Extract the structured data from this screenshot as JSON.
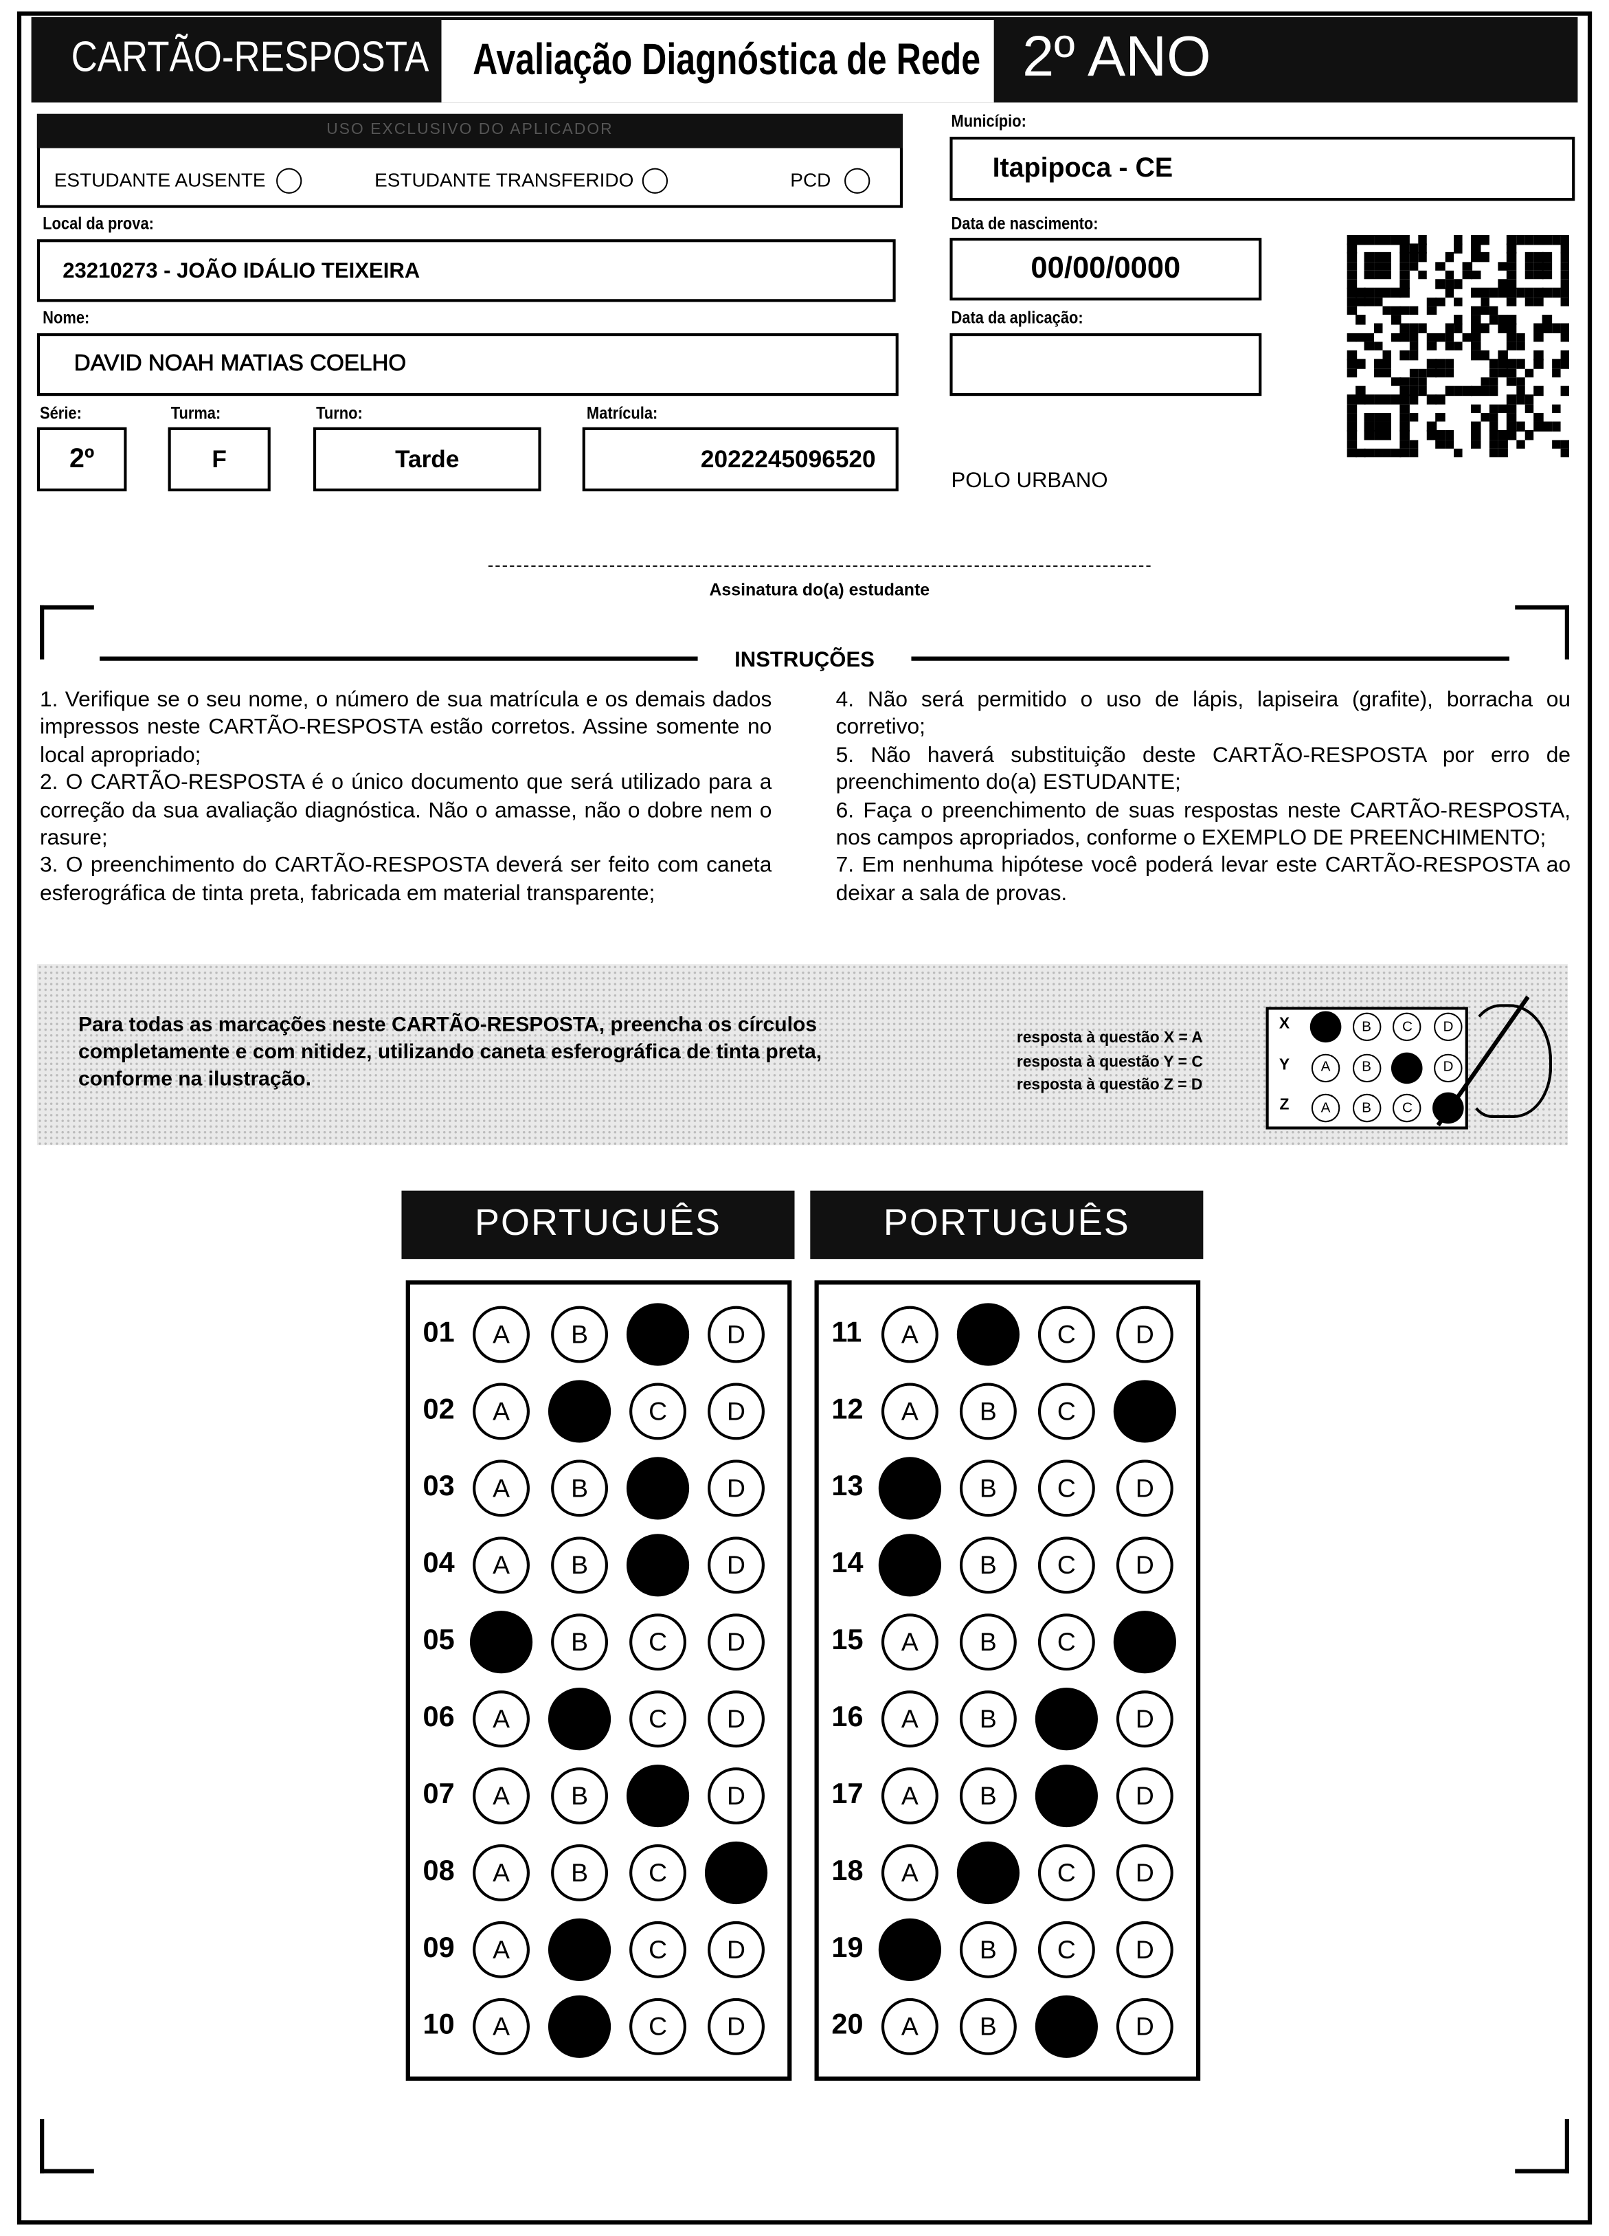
{
  "header": {
    "title": "CARTÃO-RESPOSTA",
    "subtitle": "Avaliação Diagnóstica de Rede",
    "grade": "2º ANO"
  },
  "applicator": {
    "title": "USO EXCLUSIVO DO APLICADOR",
    "options": [
      "ESTUDANTE AUSENTE",
      "ESTUDANTE TRANSFERIDO",
      "PCD"
    ]
  },
  "fields": {
    "municipio": {
      "label": "Município:",
      "value": "Itapipoca - CE"
    },
    "local": {
      "label": "Local da prova:",
      "value": "23210273 - JOÃO IDÁLIO TEIXEIRA"
    },
    "nome": {
      "label": "Nome:",
      "value": "DAVID NOAH MATIAS COELHO"
    },
    "nascimento": {
      "label": "Data de nascimento:",
      "value": "00/00/0000"
    },
    "aplicacao": {
      "label": "Data da aplicação:"
    },
    "serie": {
      "label": "Série:",
      "value": "2º"
    },
    "turma": {
      "label": "Turma:",
      "value": "F"
    },
    "turno": {
      "label": "Turno:",
      "value": "Tarde"
    },
    "matricula": {
      "label": "Matrícula:",
      "value": "2022245096520"
    },
    "polo": "POLO URBANO"
  },
  "signature": "Assinatura do(a) estudante",
  "instructions": {
    "title": "INSTRUÇÕES",
    "items": [
      "1. Verifique se o seu nome, o número de sua matrícula e os demais dados impressos neste CARTÃO-RESPOSTA estão corretos. Assine somente no local apropriado;",
      "2. O CARTÃO-RESPOSTA é o único documento que será utilizado para a correção da sua avaliação diagnóstica. Não o amasse, não o dobre nem o rasure;",
      "3. O preenchimento do CARTÃO-RESPOSTA deverá ser feito com caneta esferográfica de tinta preta, fabricada em material transparente;",
      "4. Não será permitido o uso de lápis, lapiseira (grafite), borracha ou corretivo;",
      "5. Não haverá substituição deste CARTÃO-RESPOSTA por erro de preenchimento do(a) ESTUDANTE;",
      "6. Faça o preenchimento de suas respostas neste CARTÃO-RESPOSTA, nos campos apropriados, conforme o EXEMPLO DE PREENCHIMENTO;",
      "7. Em nenhuma hipótese você poderá levar este CARTÃO-RESPOSTA ao deixar a sala de provas."
    ]
  },
  "example": {
    "text": "Para todas as marcações neste CARTÃO-RESPOSTA, preencha os círculos completamente e com nitidez, utilizando caneta esferográfica de tinta preta, conforme na ilustração.",
    "legend": [
      "resposta à questão X = A",
      "resposta à questão Y = C",
      "resposta à questão Z = D"
    ],
    "options": [
      "A",
      "B",
      "C",
      "D"
    ],
    "rows": [
      {
        "label": "X",
        "marked": "A"
      },
      {
        "label": "Y",
        "marked": "C"
      },
      {
        "label": "Z",
        "marked": "D"
      }
    ]
  },
  "answer_blocks": [
    {
      "title": "PORTUGUÊS",
      "options": [
        "A",
        "B",
        "C",
        "D"
      ],
      "questions": [
        {
          "number": "01",
          "marked": "C"
        },
        {
          "number": "02",
          "marked": "B"
        },
        {
          "number": "03",
          "marked": "C"
        },
        {
          "number": "04",
          "marked": "C"
        },
        {
          "number": "05",
          "marked": "A"
        },
        {
          "number": "06",
          "marked": "B"
        },
        {
          "number": "07",
          "marked": "C"
        },
        {
          "number": "08",
          "marked": "D"
        },
        {
          "number": "09",
          "marked": "B"
        },
        {
          "number": "10",
          "marked": "B"
        }
      ]
    },
    {
      "title": "PORTUGUÊS",
      "options": [
        "A",
        "B",
        "C",
        "D"
      ],
      "questions": [
        {
          "number": "11",
          "marked": "B"
        },
        {
          "number": "12",
          "marked": "D"
        },
        {
          "number": "13",
          "marked": "A"
        },
        {
          "number": "14",
          "marked": "A"
        },
        {
          "number": "15",
          "marked": "D"
        },
        {
          "number": "16",
          "marked": "C"
        },
        {
          "number": "17",
          "marked": "C"
        },
        {
          "number": "18",
          "marked": "B"
        },
        {
          "number": "19",
          "marked": "A"
        },
        {
          "number": "20",
          "marked": "C"
        }
      ]
    }
  ]
}
